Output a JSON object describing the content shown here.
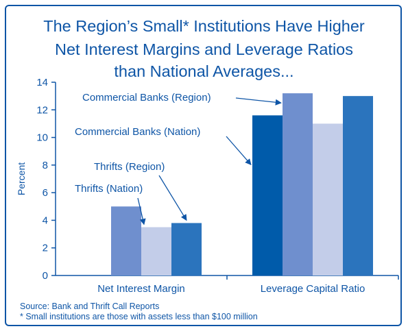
{
  "title_lines": [
    "The Region’s Small* Institutions Have Higher",
    "Net Interest Margins and Leverage Ratios",
    "than National Averages..."
  ],
  "notes": [
    "Source: Bank and Thrift Call Reports",
    "* Small institutions are those with assets less than $100 million"
  ],
  "colors": {
    "frame": "#0e55a6",
    "text": "#0e55a6",
    "axis": "#0e55a6"
  },
  "chart_data": {
    "type": "bar",
    "ylabel": "Percent",
    "xlabel": "",
    "ylim": [
      0,
      14
    ],
    "yticks": [
      0,
      2,
      4,
      6,
      8,
      10,
      12,
      14
    ],
    "grid": false,
    "categories": [
      "Net Interest Margin",
      "Leverage Capital Ratio"
    ],
    "series": [
      {
        "name": "Commercial Banks (Nation)",
        "color": "#005baa",
        "values": [
          null,
          11.6
        ]
      },
      {
        "name": "Commercial Banks (Region)",
        "color": "#6f8fce",
        "values": [
          5.0,
          13.2
        ]
      },
      {
        "name": "Thrifts (Nation)",
        "color": "#c3cde9",
        "values": [
          3.5,
          11.0
        ]
      },
      {
        "name": "Thrifts (Region)",
        "color": "#2b74bd",
        "values": [
          3.8,
          13.0
        ]
      }
    ]
  }
}
